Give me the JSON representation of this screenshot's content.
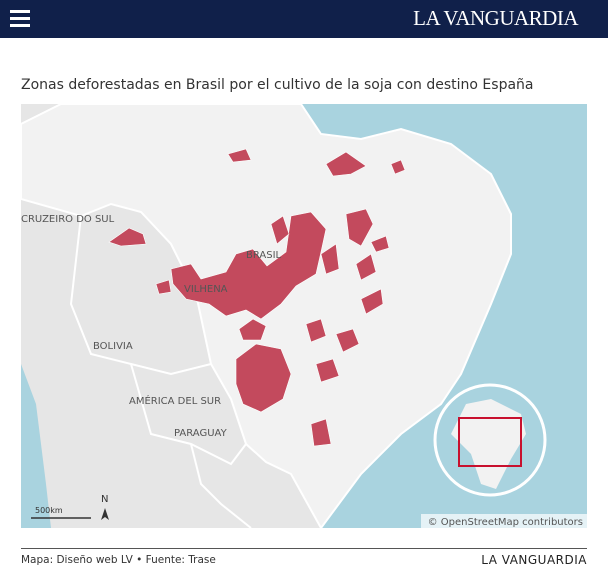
{
  "header": {
    "logo": "LA VANGUARDIA"
  },
  "title": "Zonas deforestadas en Brasil por el cultivo de la soja con destino España",
  "map": {
    "labels": [
      "CRUZEIRO DO SUL",
      "BRASIL",
      "VILHENA",
      "BOLIVIA",
      "AMÉRICA DEL SUR",
      "PARAGUAY"
    ],
    "scale": "500km",
    "north": "N",
    "attribution": "© OpenStreetMap contributors"
  },
  "footer": {
    "source": "Mapa: Diseño web LV • Fuente: Trase",
    "brand": "LA VANGUARDIA"
  }
}
